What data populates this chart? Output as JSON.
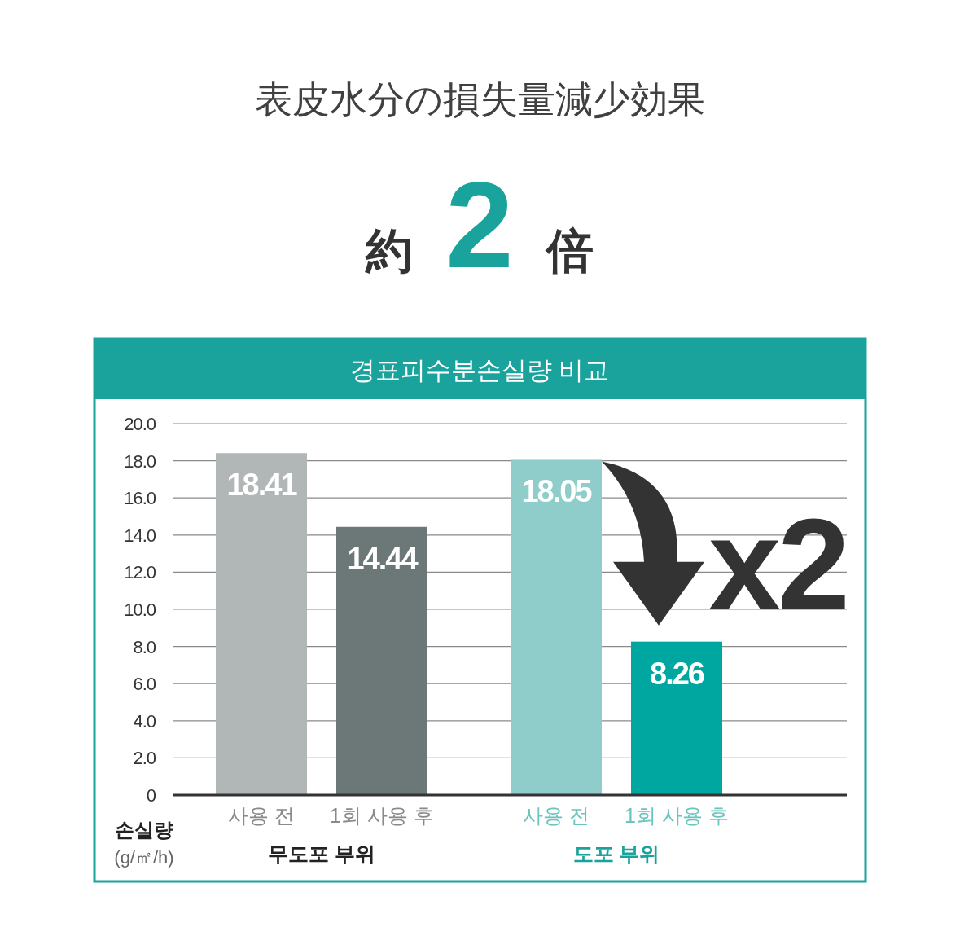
{
  "chart_data": {
    "type": "bar",
    "title": "表皮水分の損失量減少効果",
    "subtitle": "約 2 倍",
    "ylabel": "손실량 (g/㎡/h)",
    "annotations": [
      "경표피수분손실량 비교",
      "무도포 부위",
      "도포 부위",
      "x2"
    ],
    "categories": [
      "사용 전",
      "1회 사용 후",
      "사용 전",
      "1회 사용 후"
    ],
    "values": [
      18.41,
      14.44,
      18.05,
      8.26
    ],
    "colors": [
      "#b1b6b6",
      "#6b7877",
      "#8ecdc9",
      "#00a7a0"
    ],
    "ylim": [
      0,
      20
    ],
    "yticks": [
      0,
      {
        "value": 2,
        "label": "2.0"
      },
      {
        "value": 4,
        "label": "4.0"
      },
      {
        "value": 6,
        "label": "6.0"
      },
      {
        "value": 8,
        "label": "8.0"
      },
      {
        "value": 10,
        "label": "10.0"
      },
      {
        "value": 12,
        "label": "12.0"
      },
      {
        "value": 14,
        "label": "14.0"
      },
      {
        "value": 16,
        "label": "16.0"
      },
      {
        "value": 18,
        "label": "18.0"
      },
      {
        "value": 20,
        "label": "20.0"
      }
    ],
    "grid": "y",
    "data_labels": true
  }
}
